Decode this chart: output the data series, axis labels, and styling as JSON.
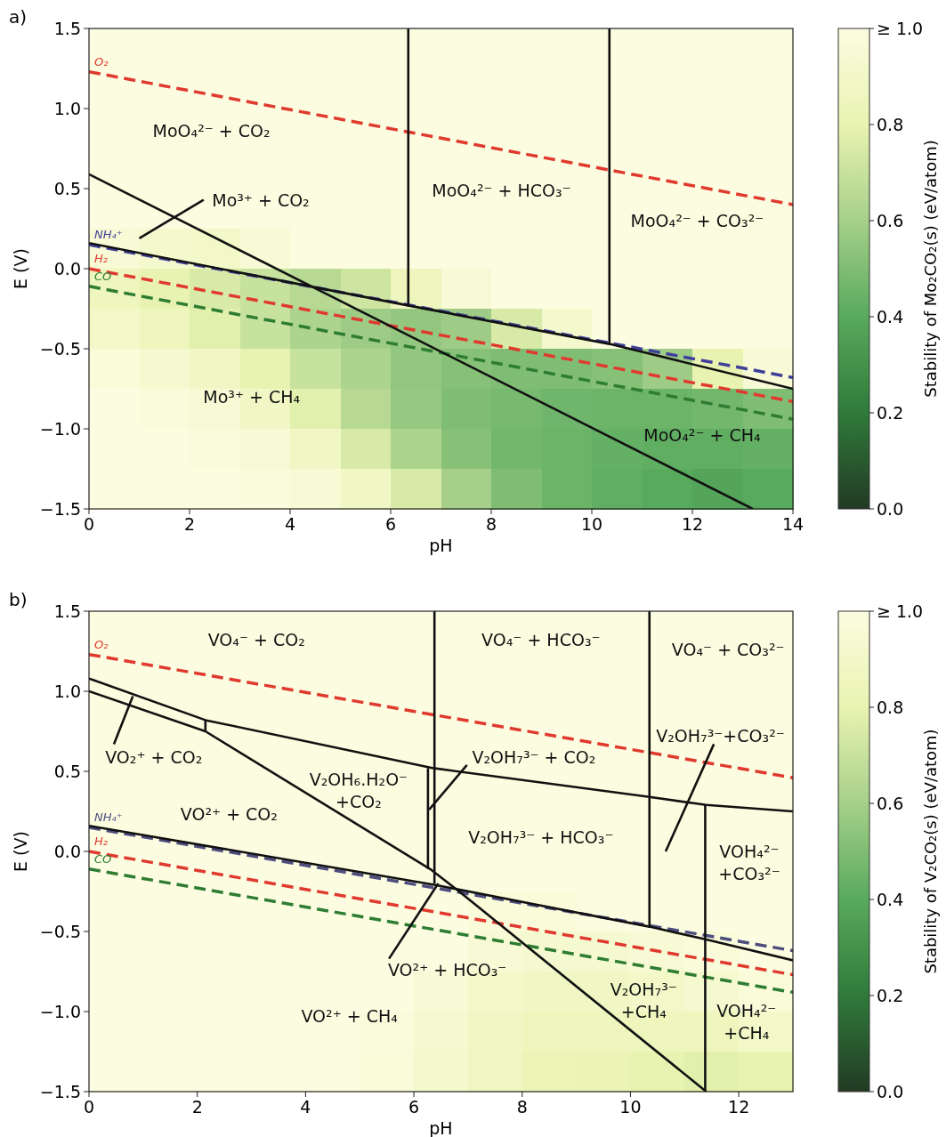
{
  "chart_data": [
    {
      "type": "heatmap",
      "title": "a)",
      "xlabel": "pH",
      "ylabel": "E (V)",
      "clabel": "Stability of Mo₂CO₂(s) (eV/atom)",
      "xlim": [
        0,
        14
      ],
      "ylim": [
        -1.5,
        1.5
      ],
      "xticks": [
        0,
        2,
        4,
        6,
        8,
        10,
        12,
        14
      ],
      "yticks": [
        {
          "value": -1.5,
          "label": "−1.5"
        },
        {
          "value": -1.0,
          "label": "−1.0"
        },
        {
          "value": -0.5,
          "label": "−0.5"
        },
        {
          "value": 0,
          "label": "0.0"
        },
        {
          "value": 0.5,
          "label": "0.5"
        },
        {
          "value": 1.0,
          "label": "1.0"
        },
        {
          "value": 1.5,
          "label": "1.5"
        }
      ],
      "clim": [
        0,
        1
      ],
      "cticks": [
        {
          "value": 0,
          "label": "0.0"
        },
        {
          "value": 0.2,
          "label": "0.2"
        },
        {
          "value": 0.4,
          "label": "0.4"
        },
        {
          "value": 0.6,
          "label": "0.6"
        },
        {
          "value": 0.8,
          "label": "0.8"
        },
        {
          "value": 1,
          "label": "≥ 1.0"
        }
      ],
      "cells": [
        [
          1,
          1,
          1,
          1,
          1,
          1,
          1,
          1,
          1,
          1,
          1,
          1,
          1,
          1
        ],
        [
          1,
          1,
          1,
          1,
          1,
          1,
          1,
          1,
          1,
          1,
          1,
          1,
          1,
          1
        ],
        [
          1,
          1,
          1,
          1,
          1,
          1,
          1,
          1,
          1,
          1,
          1,
          1,
          1,
          1
        ],
        [
          1,
          1,
          1,
          1,
          1,
          1,
          1,
          1,
          1,
          1,
          1,
          1,
          1,
          1
        ],
        [
          1,
          1,
          1,
          1,
          1,
          1,
          1,
          1,
          1,
          1,
          1,
          1,
          1,
          1
        ],
        [
          0.95,
          0.92,
          0.9,
          0.95,
          1,
          1,
          1,
          1,
          1,
          1,
          1,
          1,
          1,
          1
        ],
        [
          0.85,
          0.8,
          0.75,
          0.7,
          0.65,
          0.72,
          0.85,
          0.95,
          1,
          1,
          1,
          1,
          1,
          1
        ],
        [
          0.9,
          0.85,
          0.78,
          0.7,
          0.62,
          0.58,
          0.55,
          0.58,
          0.75,
          0.92,
          1,
          1,
          1,
          1
        ],
        [
          0.97,
          0.93,
          0.88,
          0.8,
          0.7,
          0.62,
          0.55,
          0.52,
          0.5,
          0.5,
          0.52,
          0.58,
          0.8,
          0.95
        ],
        [
          1,
          0.98,
          0.95,
          0.88,
          0.78,
          0.65,
          0.56,
          0.5,
          0.48,
          0.46,
          0.45,
          0.45,
          0.47,
          0.5
        ],
        [
          1,
          1,
          0.98,
          0.95,
          0.88,
          0.75,
          0.62,
          0.52,
          0.47,
          0.45,
          0.43,
          0.42,
          0.42,
          0.43
        ],
        [
          1,
          1,
          1,
          0.98,
          0.95,
          0.88,
          0.75,
          0.6,
          0.5,
          0.45,
          0.42,
          0.4,
          0.38,
          0.4
        ]
      ],
      "series": [
        {
          "type": "line",
          "name": "O₂",
          "color": "#e03a2f",
          "line_style": "dashed",
          "x": [
            0,
            14
          ],
          "values": [
            1.23,
            0.4
          ]
        },
        {
          "type": "line",
          "name": "NH₄⁺",
          "color": "#3f3f9a",
          "line_style": "dashed",
          "x": [
            0,
            14
          ],
          "values": [
            0.15,
            -0.68
          ]
        },
        {
          "type": "line",
          "name": "H₂",
          "color": "#e03a2f",
          "line_style": "dashed",
          "x": [
            0,
            14
          ],
          "values": [
            0.0,
            -0.83
          ]
        },
        {
          "type": "line",
          "name": "CO",
          "color": "#2e7d32",
          "line_style": "dashed",
          "x": [
            0,
            14
          ],
          "values": [
            -0.11,
            -0.94
          ]
        },
        {
          "type": "line",
          "color": "#111111",
          "line_style": "solid",
          "x": [
            0,
            6.35,
            10.35,
            14
          ],
          "values": [
            0.16,
            -0.23,
            -0.47,
            -0.75
          ]
        },
        {
          "type": "line",
          "color": "#111111",
          "line_style": "solid",
          "x": [
            0,
            13.2
          ],
          "values": [
            0.59,
            -1.5
          ]
        },
        {
          "type": "line",
          "color": "#111111",
          "line_style": "solid",
          "x": [
            6.35,
            6.35
          ],
          "values": [
            1.5,
            -0.23
          ]
        },
        {
          "type": "line",
          "color": "#111111",
          "line_style": "solid",
          "x": [
            10.35,
            10.35
          ],
          "values": [
            1.5,
            -0.47
          ]
        },
        {
          "type": "line",
          "color": "#111111",
          "line_style": "solid",
          "x": [
            1.0,
            2.28
          ],
          "values": [
            0.19,
            0.43
          ]
        }
      ],
      "annotations": [
        "MoO₄²⁻ + CO₂",
        "Mo³⁺ + CO₂",
        "MoO₄²⁻ + HCO₃⁻",
        "MoO₄²⁻ + CO₃²⁻",
        "Mo³⁺ + CH₄",
        "MoO₄²⁻ + CH₄"
      ]
    },
    {
      "type": "heatmap",
      "title": "b)",
      "xlabel": "pH",
      "ylabel": "E (V)",
      "clabel": "Stability of V₂CO₂(s) (eV/atom)",
      "xlim": [
        0,
        13
      ],
      "ylim": [
        -1.5,
        1.5
      ],
      "xticks": [
        0,
        2,
        4,
        6,
        8,
        10,
        12
      ],
      "yticks": [
        {
          "value": -1.5,
          "label": "−1.5"
        },
        {
          "value": -1.0,
          "label": "−1.0"
        },
        {
          "value": -0.5,
          "label": "−0.5"
        },
        {
          "value": 0,
          "label": "0.0"
        },
        {
          "value": 0.5,
          "label": "0.5"
        },
        {
          "value": 1.0,
          "label": "1.0"
        },
        {
          "value": 1.5,
          "label": "1.5"
        }
      ],
      "clim": [
        0,
        1
      ],
      "cticks": [
        {
          "value": 0,
          "label": "0.0"
        },
        {
          "value": 0.2,
          "label": "0.2"
        },
        {
          "value": 0.4,
          "label": "0.4"
        },
        {
          "value": 0.6,
          "label": "0.6"
        },
        {
          "value": 0.8,
          "label": "0.8"
        },
        {
          "value": 1,
          "label": "≥ 1.0"
        }
      ],
      "cells": [
        [
          1,
          1,
          1,
          1,
          1,
          1,
          1,
          1,
          1,
          1,
          1,
          1,
          1
        ],
        [
          1,
          1,
          1,
          1,
          1,
          1,
          1,
          1,
          1,
          1,
          1,
          1,
          1
        ],
        [
          1,
          1,
          1,
          1,
          1,
          1,
          1,
          1,
          1,
          1,
          1,
          1,
          1
        ],
        [
          1,
          1,
          1,
          1,
          1,
          1,
          1,
          1,
          1,
          1,
          1,
          1,
          1
        ],
        [
          1,
          1,
          1,
          1,
          1,
          1,
          1,
          1,
          1,
          1,
          1,
          1,
          1
        ],
        [
          1,
          1,
          1,
          1,
          1,
          1,
          1,
          1,
          1,
          1,
          1,
          1,
          1
        ],
        [
          1,
          1,
          1,
          1,
          1,
          1,
          1,
          1,
          1,
          1,
          1,
          1,
          1
        ],
        [
          1,
          1,
          1,
          1,
          1,
          1,
          1,
          0.97,
          0.97,
          1,
          1,
          1,
          1
        ],
        [
          1,
          1,
          1,
          1,
          1,
          1,
          1,
          0.95,
          0.93,
          0.93,
          0.95,
          0.97,
          1
        ],
        [
          1,
          1,
          1,
          1,
          1,
          1,
          0.95,
          0.9,
          0.88,
          0.88,
          0.9,
          0.93,
          0.97
        ],
        [
          1,
          1,
          1,
          1,
          1,
          0.98,
          0.93,
          0.88,
          0.85,
          0.85,
          0.85,
          0.85,
          0.9
        ],
        [
          1,
          1,
          1,
          1,
          1,
          0.97,
          0.92,
          0.87,
          0.83,
          0.82,
          0.8,
          0.78,
          0.8
        ]
      ],
      "series": [
        {
          "type": "line",
          "name": "O₂",
          "color": "#e03a2f",
          "line_style": "dashed",
          "x": [
            0,
            13
          ],
          "values": [
            1.23,
            0.46
          ]
        },
        {
          "type": "line",
          "name": "NH₄⁺",
          "color": "#4d4d80",
          "line_style": "dashed",
          "x": [
            0,
            13
          ],
          "values": [
            0.15,
            -0.62
          ]
        },
        {
          "type": "line",
          "name": "H₂",
          "color": "#e03a2f",
          "line_style": "dashed",
          "x": [
            0,
            13
          ],
          "values": [
            0.0,
            -0.77
          ]
        },
        {
          "type": "line",
          "name": "CO",
          "color": "#2e7d32",
          "line_style": "dashed",
          "x": [
            0,
            13
          ],
          "values": [
            -0.11,
            -0.88
          ]
        },
        {
          "type": "line",
          "color": "#111111",
          "line_style": "solid",
          "x": [
            0,
            6.4,
            10.35,
            11.4,
            13
          ],
          "values": [
            0.16,
            -0.21,
            -0.47,
            -0.55,
            -0.68
          ]
        },
        {
          "type": "line",
          "color": "#111111",
          "line_style": "solid",
          "x": [
            0,
            2.15,
            6.36,
            10.35,
            11.4,
            13
          ],
          "values": [
            1.08,
            0.82,
            0.52,
            0.34,
            0.29,
            0.25
          ]
        },
        {
          "type": "line",
          "color": "#111111",
          "line_style": "solid",
          "x": [
            0,
            2.15,
            6.3,
            6.8,
            11.4
          ],
          "values": [
            1.0,
            0.75,
            -0.11,
            -0.24,
            -1.5
          ]
        },
        {
          "type": "line",
          "color": "#111111",
          "line_style": "solid",
          "x": [
            2.15,
            2.15
          ],
          "values": [
            0.82,
            0.75
          ]
        },
        {
          "type": "line",
          "color": "#111111",
          "line_style": "solid",
          "x": [
            6.26,
            6.26
          ],
          "values": [
            0.52,
            -0.11
          ]
        },
        {
          "type": "line",
          "color": "#111111",
          "line_style": "solid",
          "x": [
            6.38,
            6.38
          ],
          "values": [
            1.5,
            -0.2
          ]
        },
        {
          "type": "line",
          "color": "#111111",
          "line_style": "solid",
          "x": [
            10.35,
            10.35
          ],
          "values": [
            1.5,
            -0.47
          ]
        },
        {
          "type": "line",
          "color": "#111111",
          "line_style": "solid",
          "x": [
            11.38,
            11.38
          ],
          "values": [
            0.29,
            -1.5
          ]
        },
        {
          "type": "line",
          "color": "#111111",
          "line_style": "solid",
          "x": [
            0.46,
            0.81
          ],
          "values": [
            0.67,
            0.97
          ]
        },
        {
          "type": "line",
          "color": "#111111",
          "line_style": "solid",
          "x": [
            6.28,
            6.98
          ],
          "values": [
            0.26,
            0.54
          ]
        },
        {
          "type": "line",
          "color": "#111111",
          "line_style": "solid",
          "x": [
            10.65,
            11.54
          ],
          "values": [
            0.0,
            0.67
          ]
        },
        {
          "type": "line",
          "color": "#111111",
          "line_style": "solid",
          "x": [
            5.54,
            6.45
          ],
          "values": [
            -0.67,
            -0.2
          ]
        }
      ],
      "annotations": [
        "VO₄⁻ + CO₂",
        "VO₄⁻ + HCO₃⁻",
        "VO₄⁻ + CO₃²⁻",
        "VO₂⁺ + CO₂",
        "VO²⁺ + CO₂",
        "V₂OH₆.H₂O⁻\n+CO₂",
        "V₂OH₇³⁻ + CO₂",
        "V₂OH₇³⁻+CO₃²⁻",
        "V₂OH₇³⁻ + HCO₃⁻",
        "VOH₄²⁻\n+CO₃²⁻",
        "VO²⁺ + HCO₃⁻",
        "V₂OH₇³⁻\n+CH₄",
        "VO²⁺ + CH₄",
        "VOH₄²⁻\n+CH₄"
      ]
    }
  ]
}
